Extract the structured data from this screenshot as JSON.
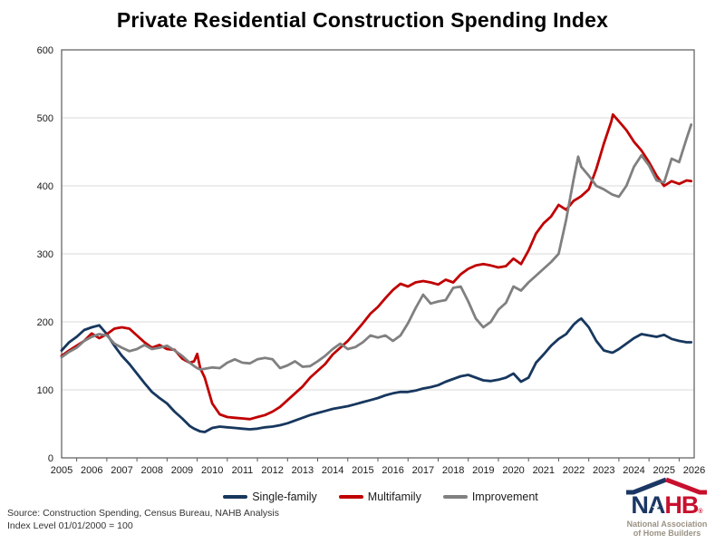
{
  "chart_data": {
    "type": "line",
    "title": "Private Residential Construction Spending Index",
    "xlabel": "",
    "ylabel": "",
    "xlim": [
      2005,
      2026
    ],
    "ylim": [
      0,
      600
    ],
    "grid": "horizontal",
    "legend_position": "bottom",
    "x_ticks": [
      2005,
      2006,
      2007,
      2008,
      2009,
      2010,
      2011,
      2012,
      2013,
      2014,
      2015,
      2016,
      2017,
      2018,
      2019,
      2020,
      2021,
      2022,
      2023,
      2024,
      2025,
      2026
    ],
    "y_ticks": [
      0,
      100,
      200,
      300,
      400,
      500,
      600
    ],
    "x": [
      2005.0,
      2005.25,
      2005.5,
      2005.75,
      2006.0,
      2006.25,
      2006.5,
      2006.75,
      2007.0,
      2007.25,
      2007.5,
      2007.75,
      2008.0,
      2008.25,
      2008.5,
      2008.75,
      2009.0,
      2009.25,
      2009.4,
      2009.5,
      2009.6,
      2009.75,
      2010.0,
      2010.25,
      2010.5,
      2010.75,
      2011.0,
      2011.25,
      2011.5,
      2011.75,
      2012.0,
      2012.25,
      2012.5,
      2012.75,
      2013.0,
      2013.25,
      2013.5,
      2013.75,
      2014.0,
      2014.25,
      2014.5,
      2014.75,
      2015.0,
      2015.25,
      2015.5,
      2015.75,
      2016.0,
      2016.25,
      2016.5,
      2016.75,
      2017.0,
      2017.25,
      2017.5,
      2017.75,
      2018.0,
      2018.25,
      2018.5,
      2018.75,
      2019.0,
      2019.25,
      2019.5,
      2019.75,
      2020.0,
      2020.25,
      2020.5,
      2020.75,
      2021.0,
      2021.25,
      2021.5,
      2021.75,
      2022.0,
      2022.15,
      2022.25,
      2022.5,
      2022.75,
      2023.0,
      2023.25,
      2023.3,
      2023.5,
      2023.75,
      2024.0,
      2024.25,
      2024.5,
      2024.75,
      2025.0,
      2025.25,
      2025.5,
      2025.75,
      2025.9
    ],
    "series": [
      {
        "name": "Single-family",
        "color": "#17375E",
        "values": [
          158,
          170,
          178,
          188,
          192,
          195,
          182,
          165,
          150,
          138,
          124,
          110,
          97,
          88,
          80,
          68,
          58,
          47,
          43,
          41,
          39,
          38,
          44,
          46,
          45,
          44,
          43,
          42,
          43,
          45,
          46,
          48,
          51,
          55,
          59,
          63,
          66,
          69,
          72,
          74,
          76,
          79,
          82,
          85,
          88,
          92,
          95,
          97,
          97,
          99,
          102,
          104,
          107,
          112,
          116,
          120,
          122,
          118,
          114,
          113,
          115,
          118,
          124,
          112,
          118,
          140,
          152,
          165,
          175,
          182,
          196,
          202,
          205,
          192,
          172,
          158,
          155,
          155,
          160,
          168,
          176,
          182,
          180,
          178,
          181,
          175,
          172,
          170,
          170
        ]
      },
      {
        "name": "Multifamily",
        "color": "#C00000",
        "values": [
          150,
          158,
          165,
          172,
          183,
          176,
          182,
          190,
          192,
          190,
          180,
          170,
          162,
          166,
          160,
          159,
          146,
          140,
          142,
          153,
          132,
          118,
          80,
          64,
          60,
          59,
          58,
          57,
          60,
          63,
          68,
          75,
          85,
          95,
          105,
          118,
          128,
          138,
          152,
          162,
          172,
          185,
          198,
          212,
          222,
          235,
          247,
          256,
          252,
          258,
          260,
          258,
          255,
          262,
          258,
          270,
          278,
          283,
          285,
          283,
          280,
          282,
          293,
          285,
          305,
          330,
          345,
          355,
          372,
          365,
          378,
          382,
          385,
          395,
          425,
          462,
          495,
          505,
          495,
          482,
          465,
          452,
          435,
          415,
          400,
          407,
          403,
          408,
          407
        ]
      },
      {
        "name": "Improvement",
        "color": "#808080",
        "values": [
          148,
          156,
          162,
          172,
          178,
          182,
          180,
          168,
          162,
          157,
          160,
          166,
          160,
          162,
          165,
          158,
          150,
          140,
          135,
          132,
          130,
          131,
          133,
          132,
          140,
          145,
          140,
          139,
          145,
          147,
          145,
          132,
          136,
          142,
          134,
          135,
          142,
          150,
          160,
          168,
          160,
          163,
          170,
          180,
          177,
          180,
          172,
          180,
          198,
          220,
          240,
          227,
          230,
          232,
          250,
          252,
          230,
          205,
          192,
          200,
          218,
          228,
          252,
          246,
          258,
          268,
          278,
          288,
          300,
          350,
          410,
          443,
          428,
          415,
          400,
          395,
          388,
          387,
          384,
          400,
          428,
          445,
          430,
          408,
          405,
          440,
          435,
          470,
          490
        ]
      }
    ]
  },
  "legend": {
    "items": [
      "Single-family",
      "Multifamily",
      "Improvement"
    ]
  },
  "source": {
    "line1": "Source: Construction Spending, Census Bureau, NAHB Analysis",
    "line2": "Index Level 01/01/2000 = 100"
  },
  "logo": {
    "na": "NA",
    "hb": "HB",
    "registered": "®",
    "star": "★",
    "tagline_line1": "National Association",
    "tagline_line2": "of Home Builders",
    "navy": "#1B3764",
    "red": "#C8102E",
    "tan": "#9B9284"
  }
}
